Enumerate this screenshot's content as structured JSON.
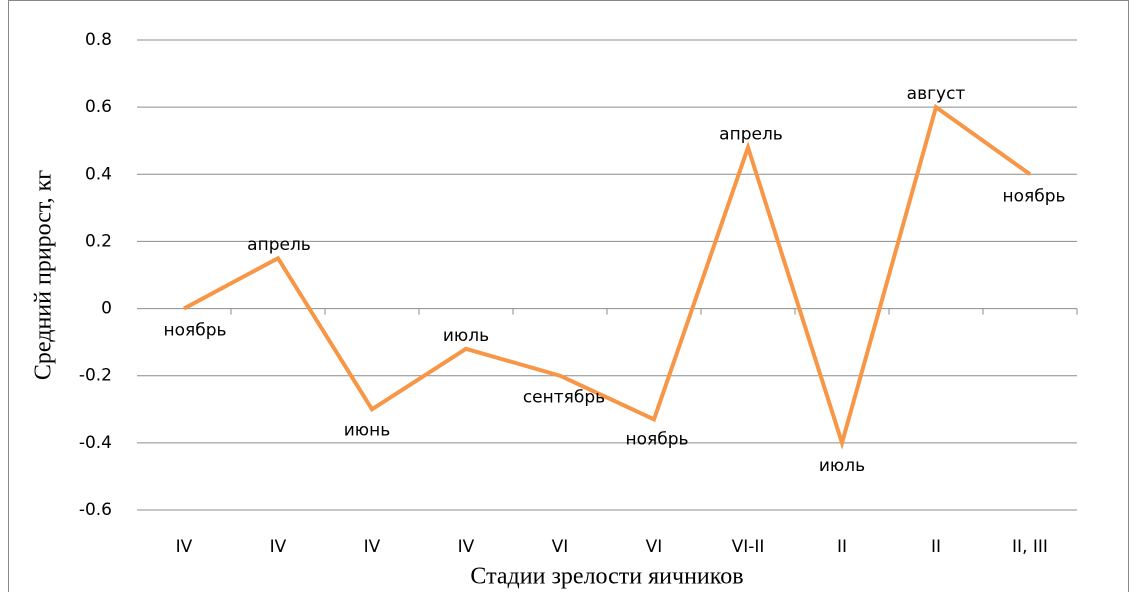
{
  "chart_data": {
    "type": "line",
    "x_label": "Стадии зрелости яичников",
    "y_label": "Средний прирост,  кг",
    "categories": [
      "IV",
      "IV",
      "IV",
      "IV",
      "VI",
      "VI",
      "VI-II",
      "II",
      "II",
      "II, III"
    ],
    "values": [
      0,
      0.15,
      -0.3,
      -0.12,
      -0.2,
      -0.33,
      0.48,
      -0.4,
      0.6,
      0.4
    ],
    "annotations": [
      "ноябрь",
      "апрель",
      "июнь",
      "июль",
      "сентябрь",
      "ноябрь",
      "апрель",
      "июль",
      "август",
      "ноябрь"
    ],
    "color": "#f79646",
    "ylim": [
      -0.6,
      0.8
    ],
    "yticks": [
      -0.6,
      -0.4,
      -0.2,
      0,
      0.2,
      0.4,
      0.6,
      0.8
    ],
    "grid": true
  }
}
